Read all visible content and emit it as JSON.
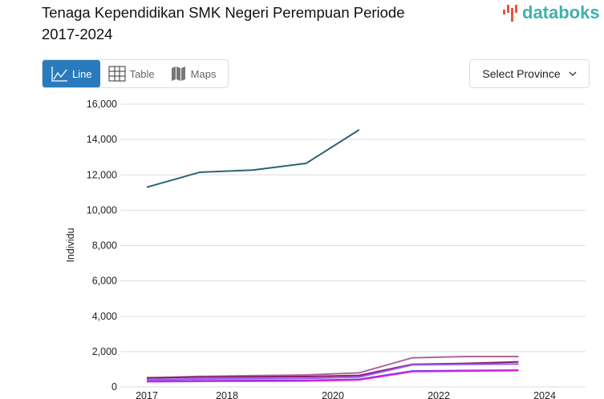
{
  "header": {
    "title": "Tenaga Kependidikan SMK Negeri Perempuan Periode 2017-2024",
    "logo_text": "databoks"
  },
  "tabs": [
    {
      "label": "Line",
      "icon": "line-chart-icon",
      "active": true
    },
    {
      "label": "Table",
      "icon": "table-icon"
    },
    {
      "label": "Maps",
      "icon": "map-icon"
    }
  ],
  "province_select": {
    "label": "Select Province",
    "icon": "chevron-down-icon"
  },
  "colors": {
    "accent": "#2a7bbd",
    "logo": "#3fb0ac"
  },
  "chart_data": {
    "type": "line",
    "title": "Tenaga Kependidikan SMK Negeri Perempuan Periode 2017-2024",
    "ylabel": "Individu",
    "xlabel": "",
    "ylim": [
      0,
      16000
    ],
    "yticks": [
      "0",
      "2,000",
      "4,000",
      "6,000",
      "8,000",
      "10,000",
      "12,000",
      "14,000",
      "16,000"
    ],
    "xticks": [
      "2017",
      "2018",
      "2020",
      "2022",
      "2024"
    ],
    "x": [
      2017,
      2018,
      2019,
      2020,
      2021,
      2022,
      2023,
      2024
    ],
    "grid": true,
    "series": [
      {
        "color": "#2b6470",
        "values": [
          11300,
          12150,
          12270,
          12650,
          14550,
          null,
          null,
          null
        ]
      },
      {
        "color": "#b0649a",
        "values": [
          500,
          600,
          640,
          680,
          800,
          1650,
          1720,
          1720
        ]
      },
      {
        "color": "#8a1a6a",
        "values": [
          520,
          560,
          570,
          590,
          650,
          1280,
          1330,
          1420
        ]
      },
      {
        "color": "#9a5cf0",
        "values": [
          420,
          460,
          470,
          490,
          560,
          1250,
          1280,
          1300
        ]
      },
      {
        "color": "#3a3af0",
        "values": [
          330,
          350,
          360,
          370,
          430,
          900,
          930,
          950
        ]
      },
      {
        "color": "#e020d8",
        "values": [
          300,
          320,
          330,
          340,
          400,
          870,
          900,
          930
        ]
      }
    ]
  }
}
